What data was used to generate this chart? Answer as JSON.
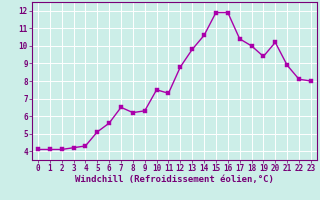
{
  "x": [
    0,
    1,
    2,
    3,
    4,
    5,
    6,
    7,
    8,
    9,
    10,
    11,
    12,
    13,
    14,
    15,
    16,
    17,
    18,
    19,
    20,
    21,
    22,
    23
  ],
  "y": [
    4.1,
    4.1,
    4.1,
    4.2,
    4.3,
    5.1,
    5.6,
    6.5,
    6.2,
    6.3,
    7.5,
    7.3,
    8.8,
    9.8,
    10.6,
    11.9,
    11.9,
    10.4,
    10.0,
    9.4,
    10.2,
    8.9,
    8.1,
    8.0
  ],
  "line_color": "#aa00aa",
  "marker_color": "#aa00aa",
  "bg_color": "#cceee8",
  "grid_color": "#ffffff",
  "xlabel": "Windchill (Refroidissement éolien,°C)",
  "xlabel_color": "#770077",
  "tick_color": "#770077",
  "spine_color": "#770077",
  "ylim": [
    3.5,
    12.5
  ],
  "xlim": [
    -0.5,
    23.5
  ],
  "yticks": [
    4,
    5,
    6,
    7,
    8,
    9,
    10,
    11,
    12
  ],
  "xticks": [
    0,
    1,
    2,
    3,
    4,
    5,
    6,
    7,
    8,
    9,
    10,
    11,
    12,
    13,
    14,
    15,
    16,
    17,
    18,
    19,
    20,
    21,
    22,
    23
  ],
  "marker_size": 2.5,
  "line_width": 1.0,
  "tick_font_size": 5.5,
  "xlabel_font_size": 6.5
}
